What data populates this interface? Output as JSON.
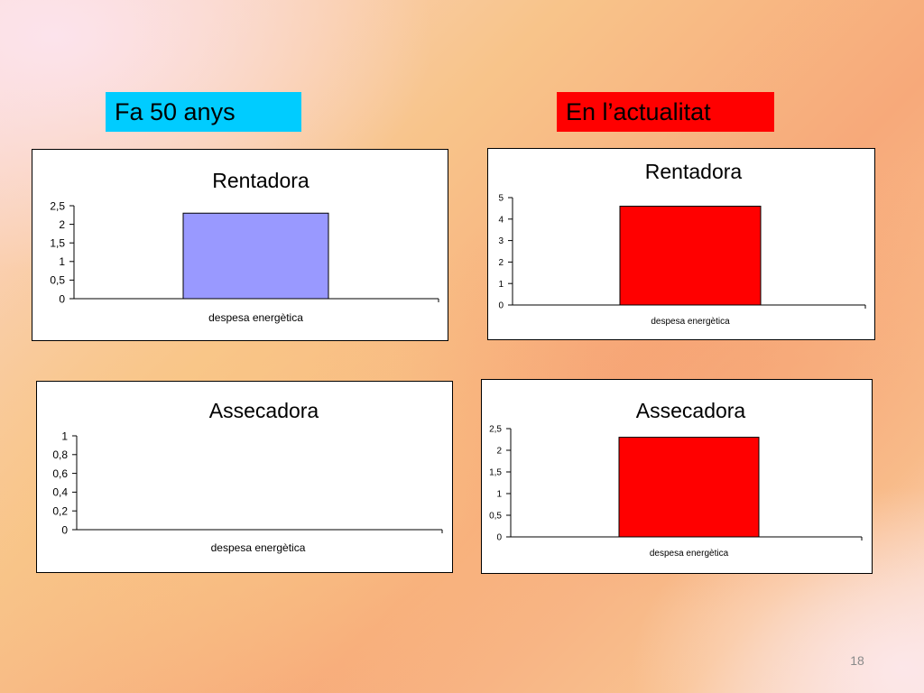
{
  "labels": {
    "left": "Fa 50 anys",
    "left_color": "#00ccff",
    "right": "En l’actualitat",
    "right_color": "#ff0000"
  },
  "slide_number": "18",
  "chart_data": [
    {
      "type": "bar",
      "title": "Rentadora",
      "categories": [
        "despesa energètica"
      ],
      "values": [
        2.3
      ],
      "ylim": [
        0,
        2.5
      ],
      "yticks": [
        "0",
        "0,5",
        "1",
        "1,5",
        "2",
        "2,5"
      ],
      "bar_color": "#9999ff",
      "grid": false
    },
    {
      "type": "bar",
      "title": "Rentadora",
      "categories": [
        "despesa energètica"
      ],
      "values": [
        4.6
      ],
      "ylim": [
        0,
        5
      ],
      "yticks": [
        "0",
        "1",
        "2",
        "3",
        "4",
        "5"
      ],
      "bar_color": "#ff0000",
      "grid": false
    },
    {
      "type": "bar",
      "title": "Assecadora",
      "categories": [
        "despesa energètica"
      ],
      "values": [
        0
      ],
      "ylim": [
        0,
        1
      ],
      "yticks": [
        "0",
        "0,2",
        "0,4",
        "0,6",
        "0,8",
        "1"
      ],
      "bar_color": "#9999ff",
      "grid": false
    },
    {
      "type": "bar",
      "title": "Assecadora",
      "categories": [
        "despesa energètica"
      ],
      "values": [
        2.3
      ],
      "ylim": [
        0,
        2.5
      ],
      "yticks": [
        "0",
        "0,5",
        "1",
        "1,5",
        "2",
        "2,5"
      ],
      "bar_color": "#ff0000",
      "grid": false
    }
  ]
}
